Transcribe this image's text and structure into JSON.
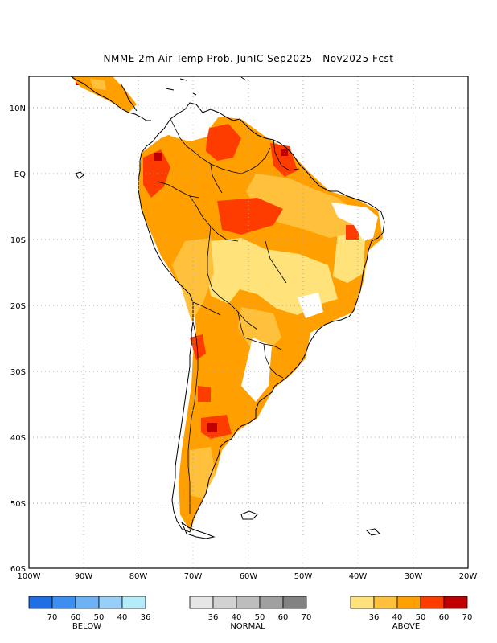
{
  "title": "NMME 2m Air Temp Prob. JunIC  Sep2025—Nov2025 Fcst",
  "map": {
    "lat_ticks": [
      "10N",
      "EQ",
      "10S",
      "20S",
      "30S",
      "40S",
      "50S",
      "60S"
    ],
    "lon_ticks": [
      "100W",
      "90W",
      "80W",
      "70W",
      "60W",
      "50W",
      "40W",
      "30W",
      "20W"
    ],
    "extent": {
      "lon_min": -100,
      "lon_max": -20,
      "lat_min": -60,
      "lat_max": 14.5
    },
    "grid": true
  },
  "legend": {
    "below": {
      "name": "BELOW",
      "labels": [
        "70",
        "60",
        "50",
        "40",
        "36"
      ],
      "colors": [
        "#1e6ee6",
        "#3c8ff0",
        "#6cb2f5",
        "#98cff8",
        "#b4ecfa"
      ]
    },
    "normal": {
      "name": "NORMAL",
      "labels": [
        "36",
        "40",
        "50",
        "60",
        "70"
      ],
      "colors": [
        "#e6e6e6",
        "#d2d2d2",
        "#bdbdbd",
        "#a0a0a0",
        "#828282"
      ]
    },
    "above": {
      "name": "ABOVE",
      "labels": [
        "36",
        "40",
        "50",
        "60",
        "70"
      ],
      "colors": [
        "#ffe27a",
        "#ffc13c",
        "#ffa000",
        "#ff3c00",
        "#c00000"
      ]
    }
  }
}
